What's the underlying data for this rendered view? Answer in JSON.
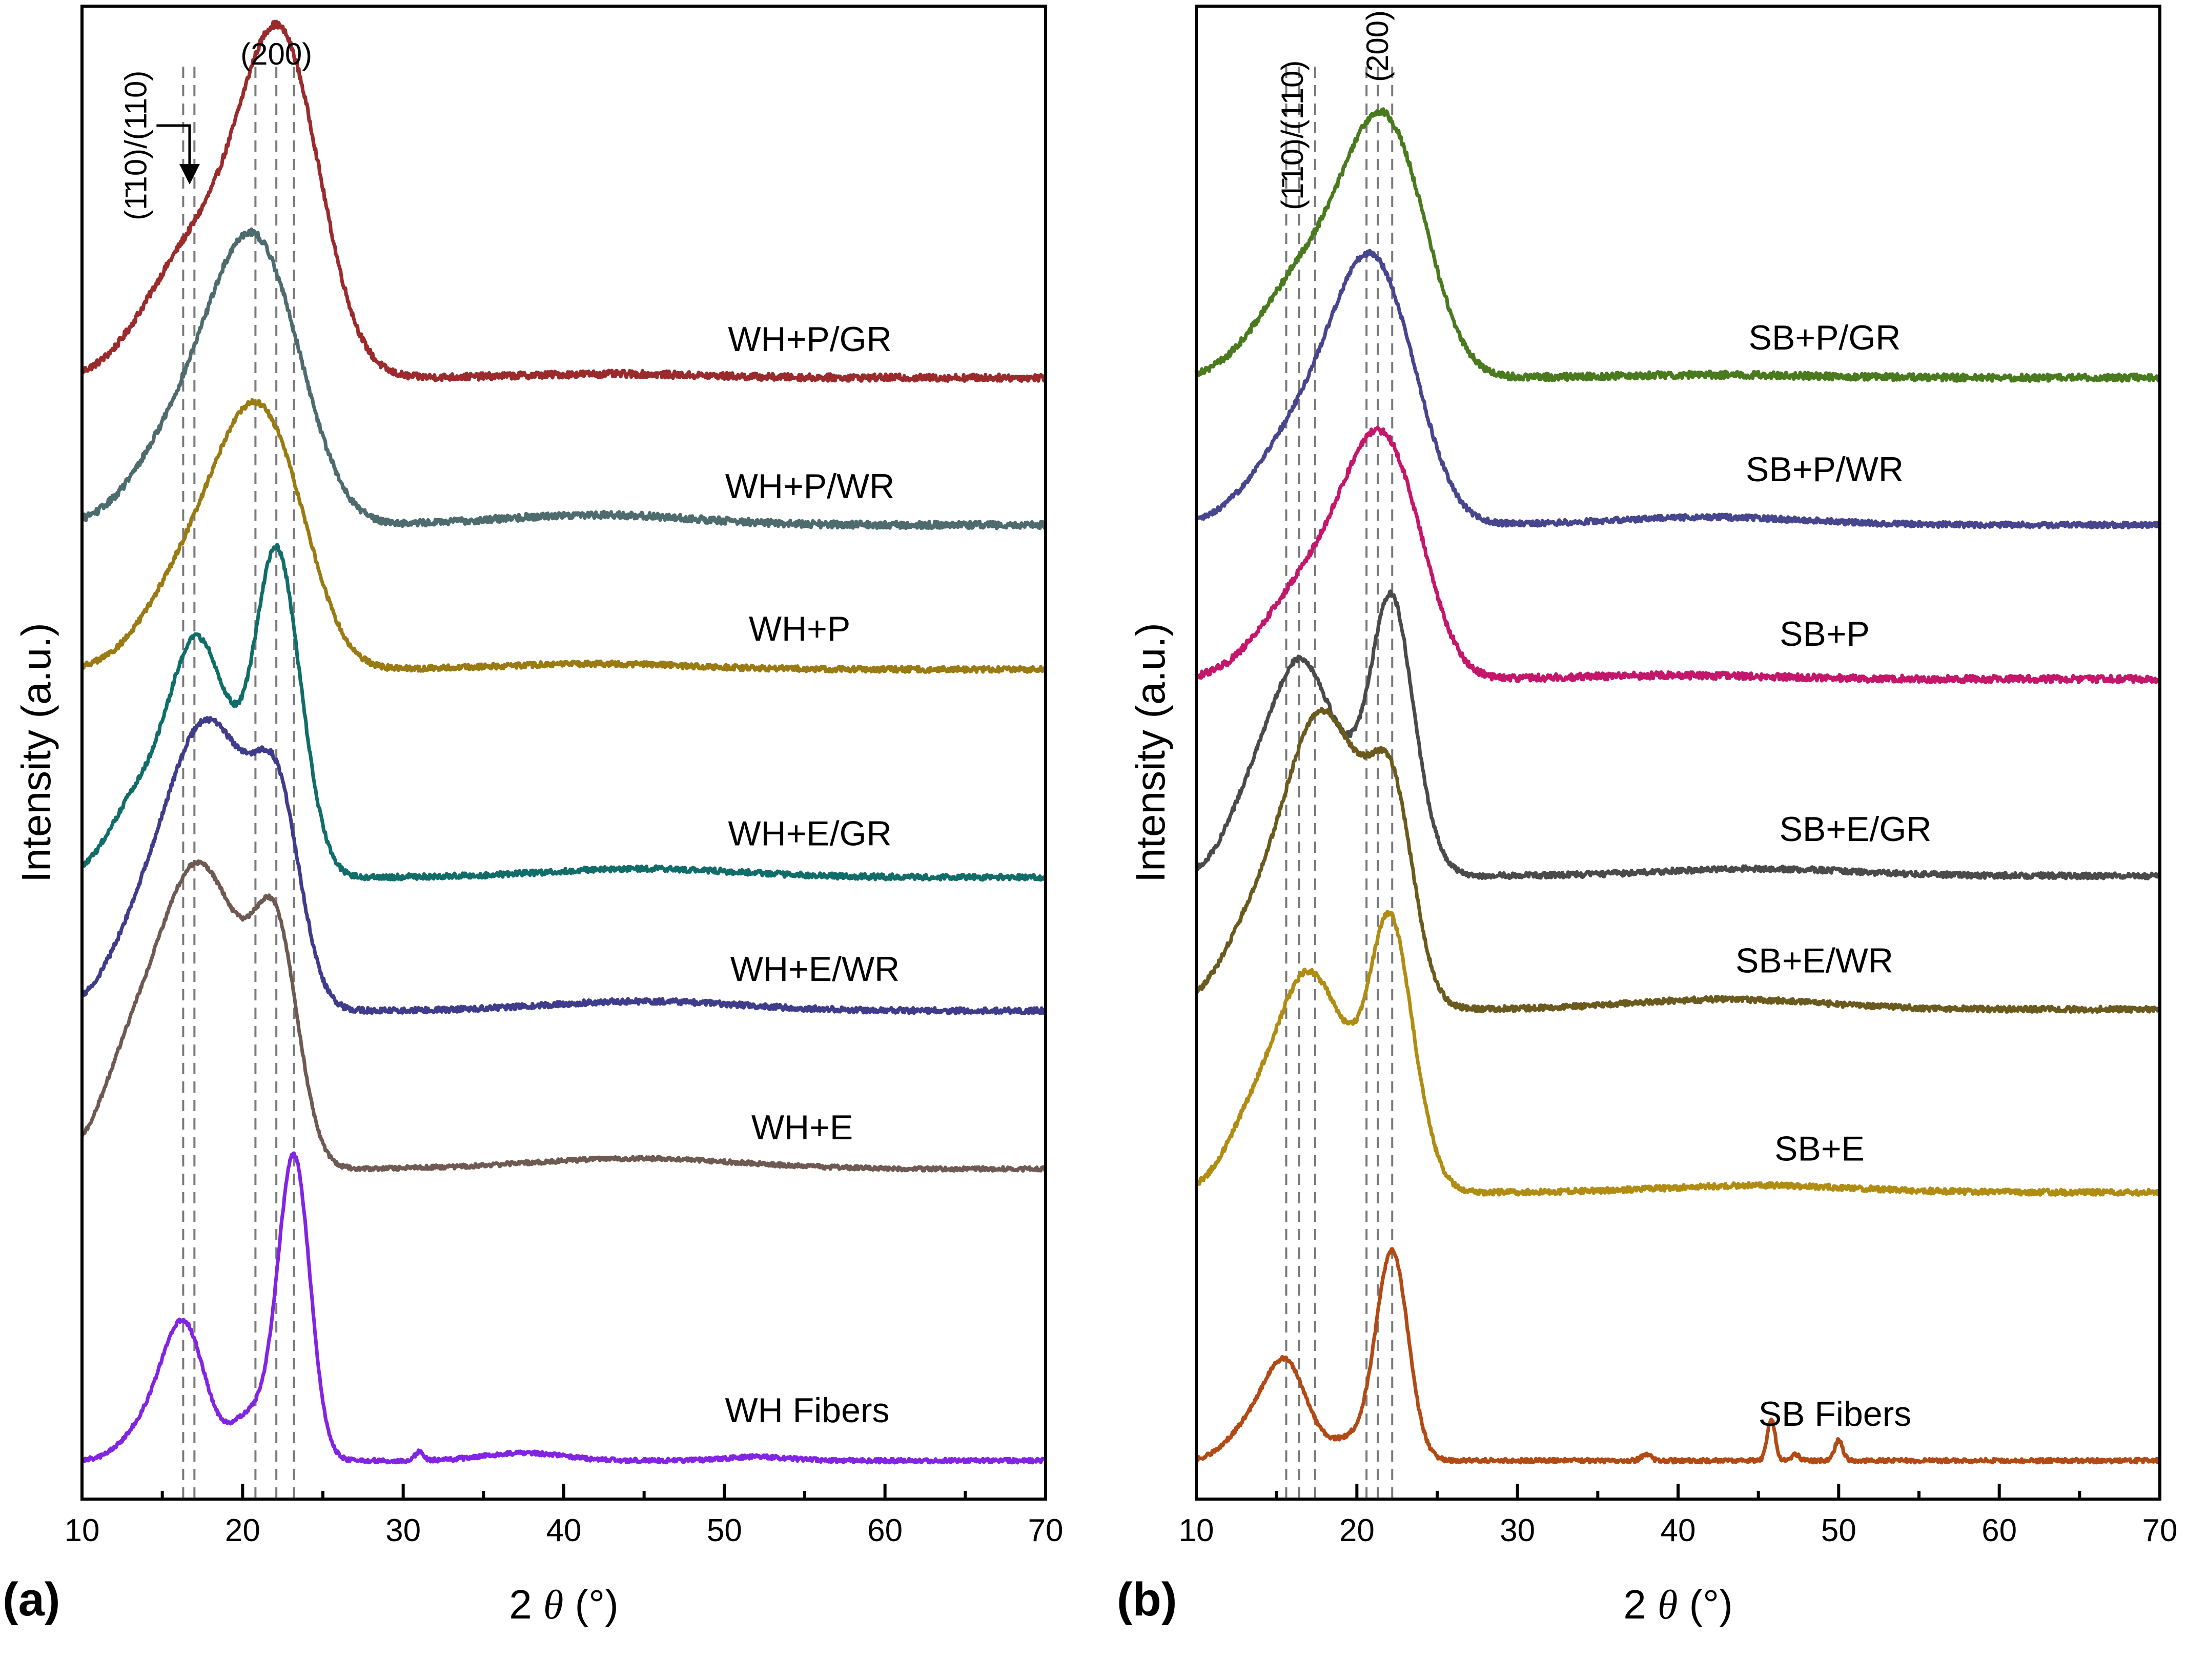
{
  "chart_data": [
    {
      "type": "line",
      "panel_label": "(a)",
      "xlabel_prefix": "2 ",
      "xlabel_theta": "θ",
      "xlabel_suffix": " (°)",
      "ylabel": "Intensity (a.u.)",
      "xlim": [
        10,
        70
      ],
      "xticks": [
        10,
        20,
        30,
        40,
        50,
        60,
        70
      ],
      "annotations": [
        "(1̄10)/(110)",
        "(200)"
      ],
      "reference_lines": [
        16.3,
        17.0,
        20.8,
        22.1,
        23.2
      ],
      "series": [
        {
          "name": "WH+P/GR",
          "color": "#9b2a2d",
          "baseline": 0.787,
          "amp": 0.18,
          "noise": 0.005,
          "peaks": [
            [
              14.5,
              2.3,
              0.1
            ],
            [
              17.6,
              2.8,
              0.48
            ],
            [
              21.9,
              2.3,
              1.0
            ],
            [
              23.8,
              2.2,
              0.4
            ],
            [
              43.0,
              5.5,
              0.015
            ]
          ]
        },
        {
          "name": "WH+P/WR",
          "color": "#4e6b6e",
          "baseline": 0.68,
          "amp": 0.148,
          "noise": 0.005,
          "peaks": [
            [
              14.5,
              2.3,
              0.1
            ],
            [
              17.2,
              2.8,
              0.45
            ],
            [
              20.4,
              2.4,
              1.0
            ],
            [
              23.0,
              2.2,
              0.4
            ],
            [
              42.0,
              6.0,
              0.05
            ]
          ]
        },
        {
          "name": "WH+P",
          "color": "#9a7a12",
          "baseline": 0.575,
          "amp": 0.135,
          "noise": 0.004,
          "peaks": [
            [
              15.0,
              2.3,
              0.15
            ],
            [
              17.8,
              2.6,
              0.5
            ],
            [
              20.8,
              2.3,
              1.0
            ],
            [
              23.3,
              2.0,
              0.38
            ],
            [
              42.0,
              6.0,
              0.03
            ]
          ]
        },
        {
          "name": "WH+E/GR",
          "color": "#116d6a",
          "baseline": 0.424,
          "amp": 0.205,
          "noise": 0.004,
          "peaks": [
            [
              13.3,
              1.7,
              0.25
            ],
            [
              16.9,
              1.7,
              0.74
            ],
            [
              19.3,
              1.6,
              0.25
            ],
            [
              22.0,
              1.25,
              1.0
            ],
            [
              23.6,
              1.2,
              0.25
            ],
            [
              45.0,
              6.0,
              0.03
            ]
          ]
        },
        {
          "name": "WH+E/WR",
          "color": "#3f3c8c",
          "baseline": 0.327,
          "amp": 0.172,
          "noise": 0.004,
          "peaks": [
            [
              13.6,
              2.0,
              0.3
            ],
            [
              17.3,
              2.2,
              1.0
            ],
            [
              20.2,
              2.0,
              0.45
            ],
            [
              22.3,
              1.4,
              0.68
            ],
            [
              45.0,
              6.0,
              0.04
            ]
          ]
        },
        {
          "name": "WH+E",
          "color": "#6e5a52",
          "baseline": 0.212,
          "amp": 0.19,
          "noise": 0.003,
          "peaks": [
            [
              13.2,
              2.0,
              0.42
            ],
            [
              17.0,
              2.1,
              1.0
            ],
            [
              20.0,
              1.8,
              0.4
            ],
            [
              22.2,
              1.35,
              0.75
            ],
            [
              44.5,
              6.5,
              0.04
            ]
          ]
        },
        {
          "name": "WH Fibers",
          "color": "#8224e3",
          "baseline": 0.0,
          "amp": 0.22,
          "noise": 0.003,
          "peaks": [
            [
              14.2,
              1.5,
              0.12
            ],
            [
              16.4,
              1.3,
              0.42
            ],
            [
              20.5,
              1.2,
              0.15
            ],
            [
              23.2,
              1.0,
              1.0
            ],
            [
              31.0,
              0.25,
              0.03
            ],
            [
              37.5,
              2.5,
              0.025
            ],
            [
              52.0,
              2.0,
              0.012
            ]
          ]
        }
      ]
    },
    {
      "type": "line",
      "panel_label": "(b)",
      "xlabel_prefix": "2 ",
      "xlabel_theta": "θ",
      "xlabel_suffix": " (°)",
      "ylabel": "Intensity (a.u.)",
      "xlim": [
        10,
        70
      ],
      "xticks": [
        10,
        20,
        30,
        40,
        50,
        60,
        70
      ],
      "annotations": [
        "(1̄10)/(110)",
        "(200)"
      ],
      "reference_lines": [
        15.6,
        16.4,
        17.4,
        20.6,
        21.3,
        22.2
      ],
      "series": [
        {
          "name": "SB+P/GR",
          "color": "#4a7a1e",
          "baseline": 0.787,
          "amp": 0.14,
          "noise": 0.005,
          "peaks": [
            [
              14.5,
              2.3,
              0.12
            ],
            [
              17.5,
              2.6,
              0.5
            ],
            [
              21.3,
              2.2,
              1.0
            ],
            [
              23.6,
              2.0,
              0.4
            ],
            [
              42.0,
              6.0,
              0.015
            ]
          ]
        },
        {
          "name": "SB+P/WR",
          "color": "#46458e",
          "baseline": 0.68,
          "amp": 0.14,
          "noise": 0.004,
          "peaks": [
            [
              14.5,
              2.3,
              0.12
            ],
            [
              17.3,
              2.6,
              0.45
            ],
            [
              20.6,
              2.2,
              1.0
            ],
            [
              23.0,
              2.0,
              0.42
            ],
            [
              42.0,
              6.0,
              0.04
            ]
          ]
        },
        {
          "name": "SB+P",
          "color": "#c4166a",
          "baseline": 0.568,
          "amp": 0.13,
          "noise": 0.005,
          "peaks": [
            [
              15.0,
              2.3,
              0.15
            ],
            [
              18.0,
              2.6,
              0.5
            ],
            [
              21.3,
              2.1,
              1.0
            ],
            [
              23.5,
              1.8,
              0.35
            ],
            [
              40.0,
              6.0,
              0.02
            ]
          ]
        },
        {
          "name": "SB+E/GR",
          "color": "#4a4a4a",
          "baseline": 0.425,
          "amp": 0.172,
          "noise": 0.004,
          "peaks": [
            [
              13.4,
              1.6,
              0.3
            ],
            [
              16.4,
              1.7,
              0.8
            ],
            [
              19.5,
              1.7,
              0.35
            ],
            [
              22.1,
              1.2,
              1.0
            ],
            [
              23.7,
              1.2,
              0.2
            ],
            [
              45.0,
              6.0,
              0.03
            ]
          ]
        },
        {
          "name": "SB+E/WR",
          "color": "#6b5a1e",
          "baseline": 0.328,
          "amp": 0.18,
          "noise": 0.004,
          "peaks": [
            [
              13.5,
              2.0,
              0.3
            ],
            [
              17.4,
              2.1,
              1.0
            ],
            [
              20.4,
              2.0,
              0.45
            ],
            [
              22.3,
              1.3,
              0.62
            ],
            [
              43.0,
              6.0,
              0.04
            ]
          ]
        },
        {
          "name": "SB+E",
          "color": "#b08d12",
          "baseline": 0.195,
          "amp": 0.165,
          "noise": 0.004,
          "peaks": [
            [
              13.5,
              1.7,
              0.3
            ],
            [
              16.8,
              1.8,
              0.85
            ],
            [
              19.6,
              1.6,
              0.35
            ],
            [
              22.0,
              1.2,
              1.0
            ],
            [
              23.6,
              1.2,
              0.25
            ],
            [
              45.0,
              6.0,
              0.03
            ]
          ]
        },
        {
          "name": "SB Fibers",
          "color": "#b24a14",
          "baseline": 0.0,
          "amp": 0.15,
          "noise": 0.003,
          "peaks": [
            [
              13.3,
              1.4,
              0.15
            ],
            [
              15.6,
              1.3,
              0.45
            ],
            [
              19.6,
              1.4,
              0.1
            ],
            [
              22.2,
              1.0,
              1.0
            ],
            [
              45.8,
              0.25,
              0.2
            ],
            [
              50.0,
              0.25,
              0.1
            ],
            [
              47.3,
              0.25,
              0.03
            ],
            [
              38.0,
              0.3,
              0.03
            ]
          ]
        }
      ]
    }
  ]
}
